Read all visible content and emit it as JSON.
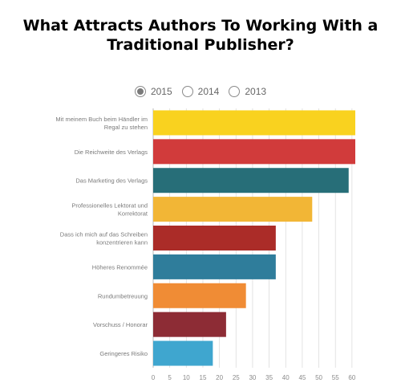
{
  "title": "What Attracts Authors To Working With a Traditional Publisher?",
  "legend": [
    {
      "label": "2015",
      "selected": true
    },
    {
      "label": "2014",
      "selected": false
    },
    {
      "label": "2013",
      "selected": false
    }
  ],
  "chart_data": {
    "type": "bar",
    "orientation": "horizontal",
    "categories": [
      [
        "Mit meinem Buch beim Händler im",
        "Regal zu stehen"
      ],
      [
        "Die Reichweite des Verlags"
      ],
      [
        "Das Marketing des Verlags"
      ],
      [
        "Professionelles Lektorat und",
        "Korrektorat"
      ],
      [
        "Dass ich mich auf das Schreiben",
        "konzentrieren kann"
      ],
      [
        "Höheres Renommée"
      ],
      [
        "Rundumbetreuung"
      ],
      [
        "Vorschuss / Honorar"
      ],
      [
        "Geringeres Risiko"
      ]
    ],
    "values": [
      61,
      61,
      59,
      48,
      37,
      37,
      28,
      22,
      18
    ],
    "colors": [
      "#f9d21f",
      "#d13b3b",
      "#276e78",
      "#f2b636",
      "#ab2c28",
      "#2f7d9b",
      "#f08c35",
      "#8d2c35",
      "#3fa6cf"
    ],
    "xticks": [
      0,
      5,
      10,
      15,
      20,
      25,
      30,
      35,
      40,
      45,
      50,
      55,
      60
    ],
    "xlim": [
      0,
      61
    ],
    "grid": true
  }
}
